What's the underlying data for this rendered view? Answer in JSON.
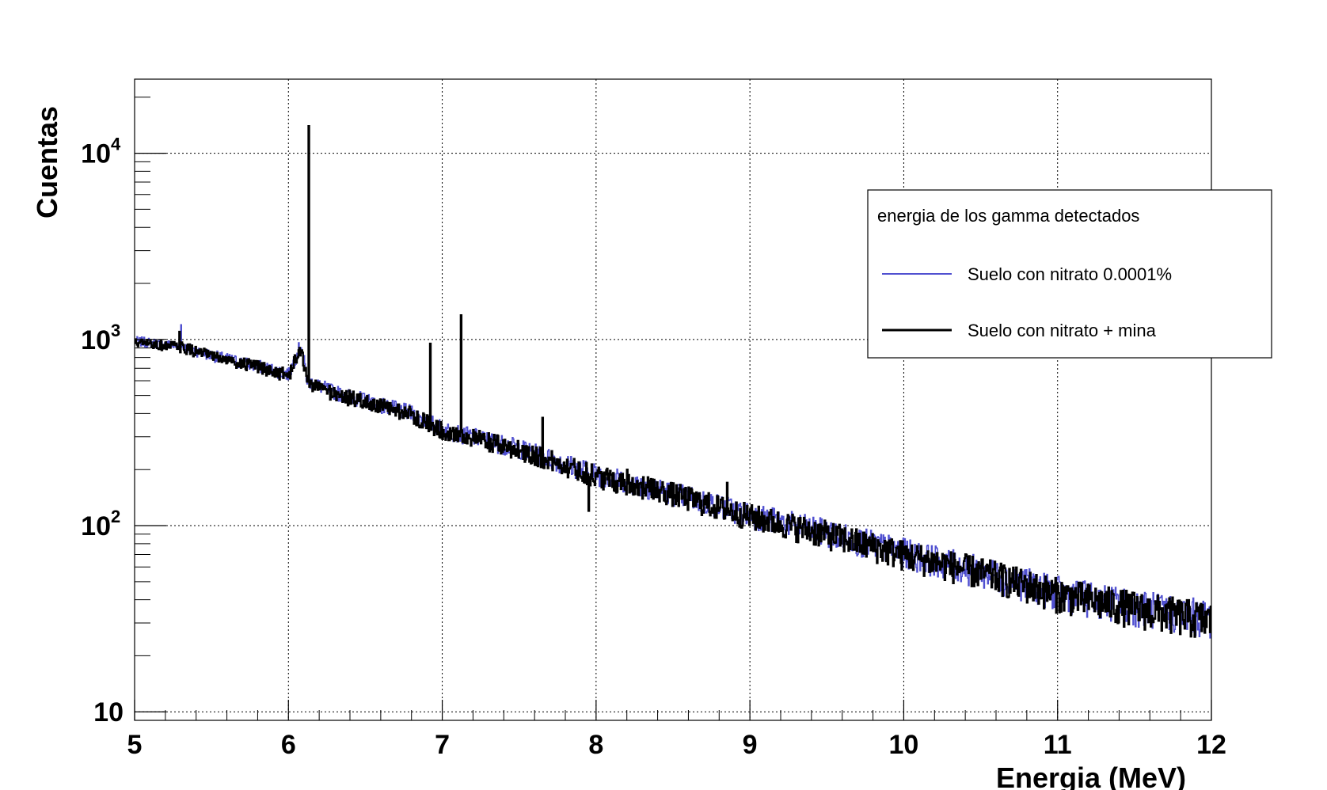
{
  "chart_data": {
    "type": "line",
    "title": "",
    "xlabel": "Energia (MeV)",
    "ylabel": "Cuentas",
    "xlim": [
      5,
      12
    ],
    "ylim": [
      9,
      25000
    ],
    "yscale": "log",
    "grid": true,
    "x_ticks": [
      "5",
      "6",
      "7",
      "8",
      "9",
      "10",
      "11",
      "12"
    ],
    "y_ticks": [
      {
        "value": 10,
        "base": "10",
        "exp": ""
      },
      {
        "value": 100,
        "base": "10",
        "exp": "2"
      },
      {
        "value": 1000,
        "base": "10",
        "exp": "3"
      },
      {
        "value": 10000,
        "base": "10",
        "exp": "4"
      }
    ],
    "legend": {
      "title": "energia de los gamma detectados",
      "position": "top-right"
    },
    "series": [
      {
        "name": "Suelo con nitrato 0.0001%",
        "color": "#5050d0",
        "x": [
          5.0,
          5.3,
          5.5,
          5.8,
          6.0,
          6.08,
          6.12,
          6.3,
          6.5,
          6.8,
          7.0,
          7.5,
          8.0,
          8.5,
          9.0,
          9.5,
          10.0,
          10.5,
          11.0,
          11.5,
          12.0
        ],
        "y": [
          980,
          920,
          820,
          720,
          650,
          950,
          600,
          520,
          470,
          400,
          330,
          260,
          190,
          150,
          115,
          92,
          72,
          57,
          44,
          37,
          32
        ],
        "peaks": [
          {
            "x": 5.3,
            "y": 1200
          }
        ]
      },
      {
        "name": "Suelo con nitrato + mina",
        "color": "#000000",
        "x": [
          5.0,
          5.3,
          5.5,
          5.8,
          6.0,
          6.08,
          6.12,
          6.3,
          6.5,
          6.8,
          7.0,
          7.5,
          8.0,
          8.5,
          9.0,
          9.5,
          10.0,
          10.5,
          11.0,
          11.5,
          12.0
        ],
        "y": [
          960,
          910,
          810,
          710,
          640,
          900,
          590,
          510,
          460,
          395,
          325,
          255,
          185,
          148,
          112,
          90,
          70,
          56,
          43,
          36,
          31
        ],
        "peaks": [
          {
            "x": 5.29,
            "y": 1100
          },
          {
            "x": 6.13,
            "y": 14000
          },
          {
            "x": 6.92,
            "y": 950
          },
          {
            "x": 7.12,
            "y": 1350
          },
          {
            "x": 7.65,
            "y": 380
          },
          {
            "x": 8.2,
            "y": 200
          },
          {
            "x": 8.85,
            "y": 170
          }
        ],
        "dips": [
          {
            "x": 7.95,
            "y": 120
          }
        ]
      }
    ]
  }
}
